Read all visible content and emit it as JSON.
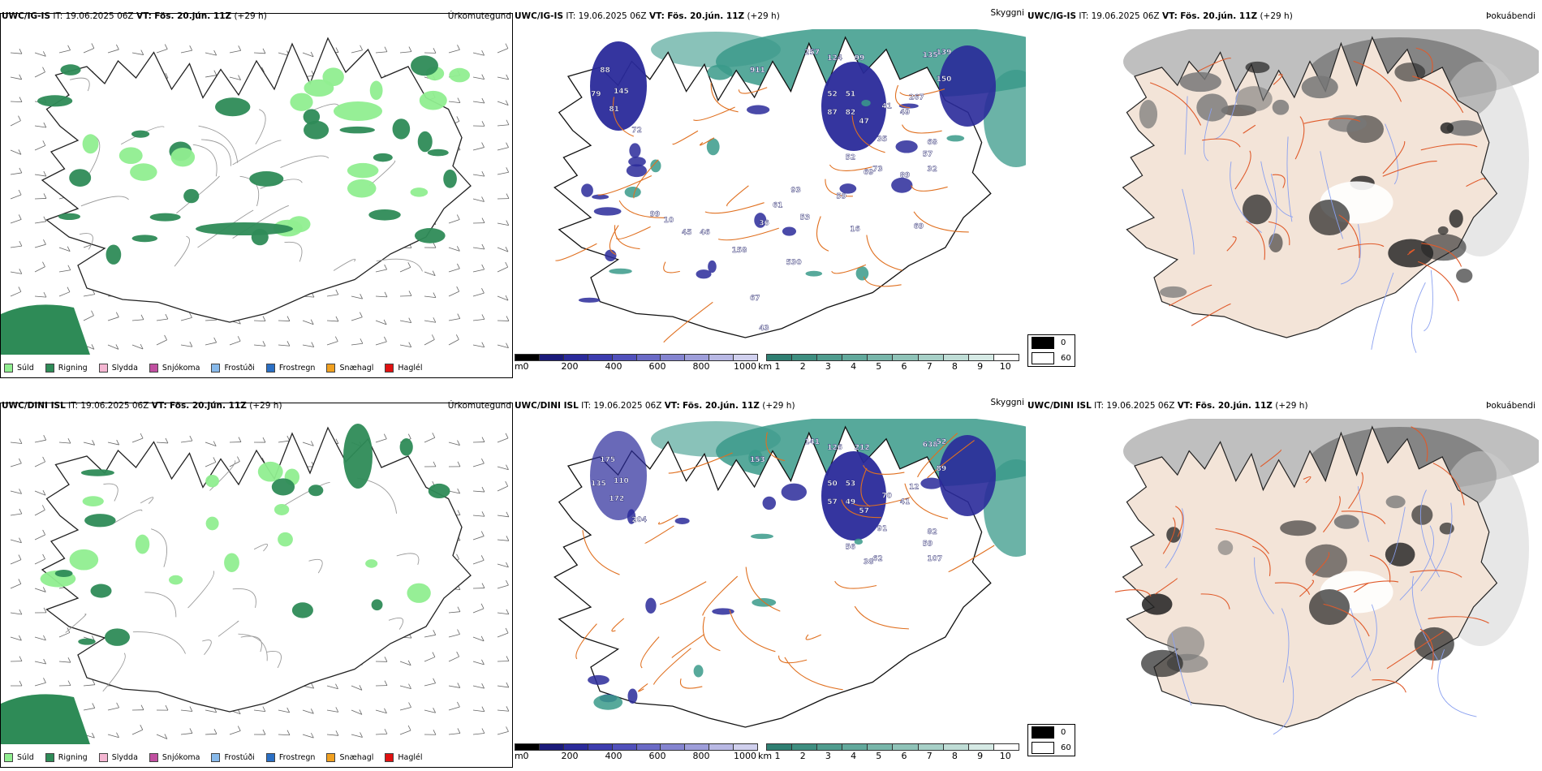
{
  "colors": {
    "sudd": "#90ee90",
    "rigning": "#2e8b57",
    "slydda": "#f4b6d2",
    "snjokoma": "#c04fa0",
    "frostudi": "#87b9ea",
    "frostregn": "#2a6fc4",
    "snaehagl": "#f0a020",
    "haglel": "#e01010",
    "cloud_blue": "#2a2a9a",
    "cloud_teal": "#3a9a8a",
    "roads": "#e07020",
    "land": "#f3e4d8",
    "rivers": "#8aa0f0",
    "fog_dark": "#333333"
  },
  "rows": [
    {
      "id": "top",
      "panels": [
        {
          "kind": "precip",
          "model": "UWC/IG-IS",
          "it_label": "IT:",
          "it_value": "19.06.2025 06Z",
          "vt_label": "VT:",
          "vt_value": "Fös. 20.jún. 11Z",
          "lead": "(+29 h)",
          "right_title": "Úrkomutegund",
          "legend": [
            "Súld",
            "Rigning",
            "Slydda",
            "Snjókoma",
            "Frostúði",
            "Frostregn",
            "Snæhagl",
            "Haglél"
          ]
        },
        {
          "kind": "cloud",
          "model": "UWC/IG-IS",
          "it_label": "IT:",
          "it_value": "19.06.2025 06Z",
          "vt_label": "VT:",
          "vt_value": "Fös. 20.jún. 11Z",
          "lead": "(+29 h)",
          "right_title": "Skyggni",
          "cbar1_unit": "m",
          "cbar1_ticks": [
            "0",
            "200",
            "400",
            "600",
            "800",
            "1000"
          ],
          "cbar2_unit": "km",
          "cbar2_ticks": [
            "1",
            "2",
            "3",
            "4",
            "5",
            "6",
            "7",
            "8",
            "9",
            "10"
          ],
          "labels": [
            "88",
            "79",
            "145",
            "81",
            "72",
            "911",
            "257",
            "124",
            "99",
            "135",
            "139",
            "150",
            "52",
            "51",
            "87",
            "82",
            "47",
            "41",
            "267",
            "49",
            "35",
            "68",
            "57",
            "32",
            "52",
            "69",
            "73",
            "89",
            "69",
            "93",
            "59",
            "61",
            "36",
            "53",
            "99",
            "10",
            "45",
            "158",
            "530",
            "46",
            "67",
            "43",
            "16"
          ]
        },
        {
          "kind": "fog",
          "model": "UWC/IG-IS",
          "it_label": "IT:",
          "it_value": "19.06.2025 06Z",
          "vt_label": "VT:",
          "vt_value": "Fös. 20.jún. 11Z",
          "lead": "(+29 h)",
          "right_title": "Þokuábendi",
          "fog_legend": [
            "0",
            "60"
          ]
        }
      ]
    },
    {
      "id": "bottom",
      "panels": [
        {
          "kind": "precip",
          "model": "UWC/DINI ISL",
          "it_label": "IT:",
          "it_value": "19.06.2025 06Z",
          "vt_label": "VT:",
          "vt_value": "Fös. 20.jún. 11Z",
          "lead": "(+29 h)",
          "right_title": "Úrkomutegund",
          "legend": [
            "Súld",
            "Rigning",
            "Slydda",
            "Snjókoma",
            "Frostúði",
            "Frostregn",
            "Snæhagl",
            "Haglél"
          ]
        },
        {
          "kind": "cloud",
          "model": "UWC/DINI ISL",
          "it_label": "IT:",
          "it_value": "19.06.2025 06Z",
          "vt_label": "VT:",
          "vt_value": "Fös. 20.jún. 11Z",
          "lead": "(+29 h)",
          "right_title": "Skyggni",
          "cbar1_unit": "m",
          "cbar1_ticks": [
            "0",
            "200",
            "400",
            "600",
            "800",
            "1000"
          ],
          "cbar2_unit": "km",
          "cbar2_ticks": [
            "1",
            "2",
            "3",
            "4",
            "5",
            "6",
            "7",
            "8",
            "9",
            "10"
          ],
          "labels": [
            "175",
            "135",
            "110",
            "172",
            "204",
            "153",
            "141",
            "126",
            "212",
            "638",
            "52",
            "89",
            "50",
            "53",
            "57",
            "49",
            "57",
            "70",
            "12",
            "41",
            "91",
            "82",
            "59",
            "107",
            "56",
            "38",
            "62"
          ]
        },
        {
          "kind": "fog",
          "model": "UWC/DINI ISL",
          "it_label": "IT:",
          "it_value": "19.06.2025 06Z",
          "vt_label": "VT:",
          "vt_value": "Fös. 20.jún. 11Z",
          "lead": "(+29 h)",
          "right_title": "Þokuábendi",
          "fog_legend": [
            "0",
            "60"
          ]
        }
      ]
    }
  ]
}
